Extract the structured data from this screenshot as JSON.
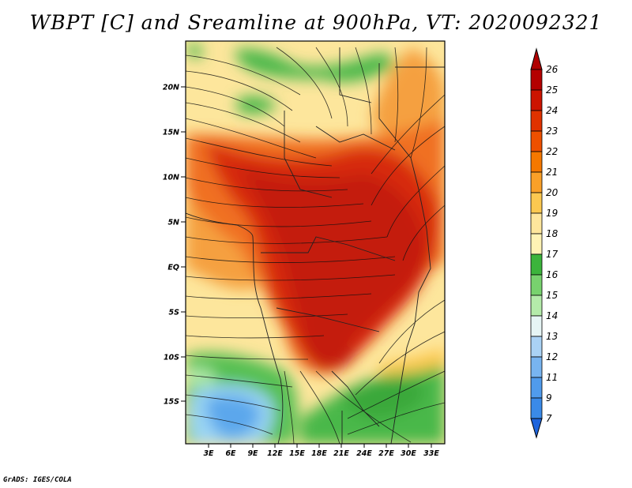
{
  "title": "WBPT [C] and Sreamline at 900hPa, VT: 2020092321",
  "credit": "GrADS: IGES/COLA",
  "map": {
    "lat_labels": [
      "20N",
      "15N",
      "10N",
      "5N",
      "EQ",
      "5S",
      "10S",
      "15S"
    ],
    "lon_labels": [
      "3E",
      "6E",
      "9E",
      "12E",
      "15E",
      "18E",
      "21E",
      "24E",
      "27E",
      "30E",
      "33E"
    ]
  },
  "colorbar": {
    "levels": [
      "26",
      "25",
      "24",
      "23",
      "22",
      "21",
      "20",
      "19",
      "18",
      "17",
      "16",
      "15",
      "14",
      "13",
      "12",
      "11",
      "9",
      "7"
    ],
    "colors": [
      "#b40000",
      "#d21e00",
      "#e63c00",
      "#f05a00",
      "#f58200",
      "#faa028",
      "#fcc850",
      "#fde69c",
      "#f7f7b4",
      "#3cb43c",
      "#78d26e",
      "#b4ebaa",
      "#e6f5f5",
      "#aad2f5",
      "#78b4f0",
      "#509bec",
      "#3282e6",
      "#1e6edc",
      "#0a55d2"
    ]
  },
  "legend_colors": {
    "c26": "#b40000",
    "c25": "#cc1400",
    "c24": "#e03200",
    "c23": "#ee5000",
    "c22": "#f57800",
    "c21": "#faa028",
    "c20": "#fcc850",
    "c19": "#fee69c",
    "c18": "#fff3b4",
    "c17": "#3cb43c",
    "c16": "#78d26e",
    "c15": "#b4ebaa",
    "c14": "#e6f5f5",
    "c13": "#aad2f5",
    "c12": "#78b4f0",
    "c11": "#509bec"
  }
}
